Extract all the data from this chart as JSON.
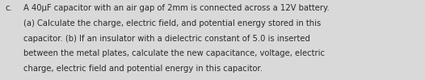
{
  "label_c": "c.",
  "lines": [
    "A 40μF capacitor with an air gap of 2mm is connected across a 12V battery.",
    "(a) Calculate the charge, electric field, and potential energy stored in this",
    "capacitor. (b) If an insulator with a dielectric constant of 5.0 is inserted",
    "between the metal plates, calculate the new capacitance, voltage, electric",
    "charge, electric field and potential energy in this capacitor."
  ],
  "background_color": "#d9d9d9",
  "text_color": "#2a2a2a",
  "font_size": 7.2,
  "label_font_size": 7.2,
  "fig_width": 5.26,
  "fig_height": 0.99,
  "dpi": 100
}
